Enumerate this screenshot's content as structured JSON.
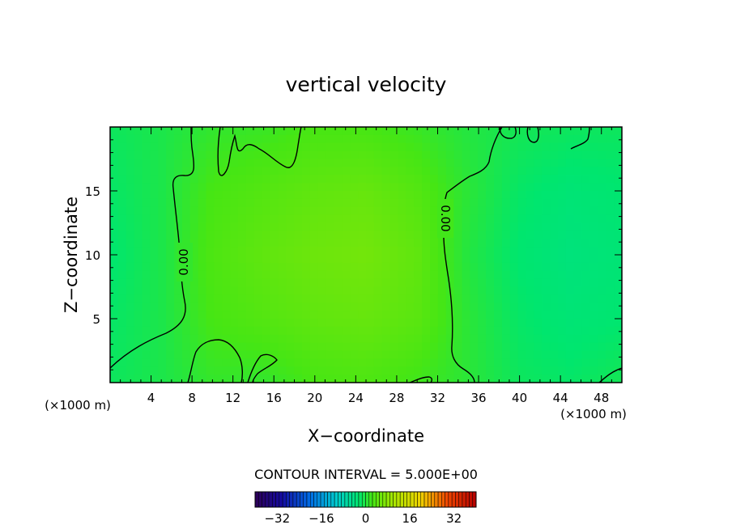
{
  "chart_data": {
    "type": "heatmap",
    "title": "vertical velocity",
    "xlabel": "X−coordinate",
    "ylabel": "Z−coordinate",
    "xlim": [
      0,
      50
    ],
    "ylim": [
      0,
      20
    ],
    "x_ticks": [
      4,
      8,
      12,
      16,
      20,
      24,
      28,
      32,
      36,
      40,
      44,
      48
    ],
    "y_ticks": [
      5,
      10,
      15
    ],
    "x_units": "(×1000 m)",
    "y_units": "(×1000 m)",
    "contour_interval_text": "CONTOUR INTERVAL = 5.000E+00",
    "contour_labels": [
      "0.00",
      "0.00"
    ],
    "colorbar": {
      "range": [
        -40,
        40
      ],
      "ticks": [
        -32,
        -16,
        0,
        16,
        32
      ]
    },
    "field": {
      "x": [
        0,
        5,
        10,
        15,
        20,
        25,
        30,
        35,
        40,
        45,
        50
      ],
      "z": [
        0,
        5,
        10,
        15,
        20
      ],
      "values": [
        [
          -1.5,
          -0.5,
          1.2,
          1.0,
          2.5,
          3.0,
          2.0,
          0.5,
          -1.5,
          -2.0,
          -1.0
        ],
        [
          -2.0,
          -0.5,
          2.5,
          3.5,
          4.5,
          5.0,
          4.0,
          0.5,
          -2.0,
          -3.0,
          -2.5
        ],
        [
          -2.5,
          -0.5,
          3.0,
          4.5,
          5.5,
          6.0,
          4.5,
          0.0,
          -2.5,
          -3.5,
          -3.0
        ],
        [
          -2.0,
          -0.5,
          2.5,
          3.5,
          4.5,
          5.0,
          3.5,
          0.5,
          -2.0,
          -3.0,
          -2.5
        ],
        [
          -1.5,
          -0.5,
          1.0,
          1.5,
          2.5,
          2.5,
          1.5,
          0.0,
          -1.0,
          -1.5,
          -1.5
        ]
      ]
    }
  }
}
